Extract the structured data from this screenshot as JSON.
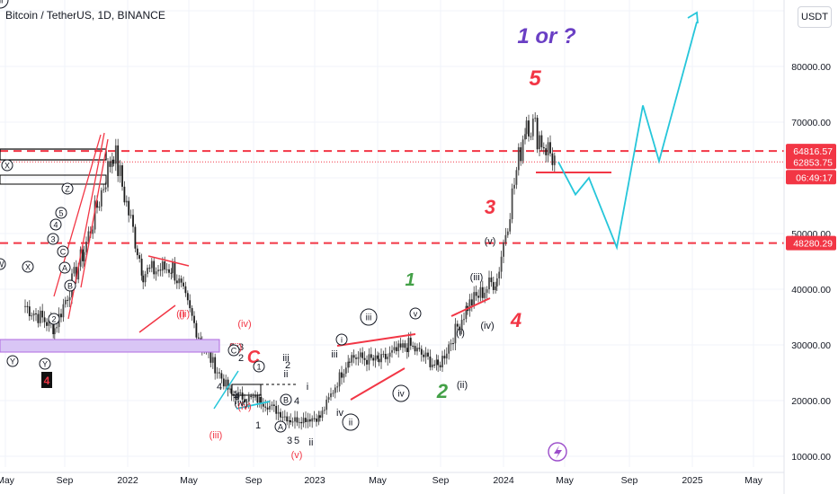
{
  "header": {
    "symbol_title": "Bitcoin / TetherUS, 1D, BINANCE",
    "currency": "USDT"
  },
  "colors": {
    "red": "#f23645",
    "cyan": "#26c6da",
    "green": "#43a047",
    "purple": "#6a3fc4",
    "candle": "#3a3a3a"
  },
  "price_axis": {
    "ticks": [
      "80000.00",
      "70000.00",
      "60000.00",
      "50000.00",
      "40000.00",
      "30000.00",
      "20000.00",
      "10000.00"
    ]
  },
  "time_axis": {
    "labels": [
      "May",
      "Sep",
      "2022",
      "May",
      "Sep",
      "2023",
      "May",
      "Sep",
      "2024",
      "May",
      "Sep",
      "2025",
      "May"
    ]
  },
  "price_tags": [
    {
      "text": "64816.57",
      "value": 64816.57
    },
    {
      "text": "62853.75",
      "value": 62853.75
    },
    {
      "text": "06:49:17",
      "value": 59800
    },
    {
      "text": "48280.29",
      "value": 48280.29
    }
  ],
  "big_labels": [
    {
      "text": "1 or ?",
      "color": "purple"
    },
    {
      "text": "5",
      "color": "red"
    },
    {
      "text": "3",
      "color": "red"
    },
    {
      "text": "4",
      "color": "red"
    },
    {
      "text": "1",
      "color": "green"
    },
    {
      "text": "2",
      "color": "green"
    },
    {
      "text": "C",
      "color": "red"
    }
  ],
  "small_labels": [
    "(v)",
    "(iii)",
    "(iv)",
    "(i)",
    "(ii)",
    "(iv)",
    "(iii)",
    "(ii)",
    "(i)",
    "iii",
    "iv",
    "ii",
    "i",
    "(v)",
    "(iv)",
    "ii",
    "iii",
    "1",
    "3",
    "4",
    "5",
    "4",
    "2",
    "1",
    "3",
    "5",
    "2",
    "4",
    "(iii)",
    "(iv)"
  ],
  "circled_labels": [
    "iii",
    "v",
    "iv",
    "ii",
    "i",
    "X",
    "Y",
    "W",
    "X",
    "Y",
    "Z",
    "5",
    "4",
    "3",
    "2",
    "1",
    "A",
    "B",
    "C",
    "A",
    "B",
    "C",
    "iii"
  ],
  "chart_data": {
    "type": "line",
    "title": "Bitcoin / TetherUS, 1D, BINANCE",
    "ylim": [
      5000,
      90000
    ],
    "x": [
      "2021-05",
      "2021-07",
      "2021-09",
      "2021-11",
      "2022-01",
      "2022-03",
      "2022-05",
      "2022-07",
      "2022-09",
      "2022-11",
      "2023-01",
      "2023-03",
      "2023-05",
      "2023-07",
      "2023-09",
      "2023-11",
      "2024-01",
      "2024-03",
      "2024-04"
    ],
    "series": [
      {
        "values": [
          37000,
          33000,
          47000,
          65000,
          43000,
          44000,
          30000,
          21000,
          20000,
          16500,
          17000,
          28000,
          27000,
          30000,
          26000,
          37000,
          42000,
          71000,
          62853.75
        ]
      }
    ],
    "levels": [
      64816.57,
      48280.29
    ],
    "projection": [
      62853.75,
      57000,
      60000,
      47500,
      73000,
      63000,
      88000
    ]
  }
}
